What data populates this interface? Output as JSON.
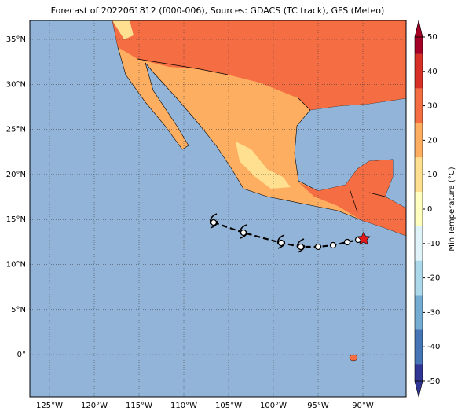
{
  "title": "Forecast of 2022061812 (f000-006), Sources: GDACS (TC track), GFS (Meteo)",
  "lat_labels": [
    "35°N",
    "30°N",
    "25°N",
    "20°N",
    "15°N",
    "10°N",
    "5°N",
    "0°"
  ],
  "lon_labels": [
    "125°W",
    "120°W",
    "115°W",
    "110°W",
    "105°W",
    "100°W",
    "95°W",
    "90°W"
  ],
  "colorbar": {
    "label": "Min Temperature (°C)",
    "ticks": [
      50,
      40,
      30,
      20,
      10,
      0,
      -10,
      -20,
      -30,
      -40,
      -50
    ],
    "colors": [
      "#a50026",
      "#d73027",
      "#f46d43",
      "#fdae61",
      "#fee090",
      "#ffffbf",
      "#e0f3f8",
      "#abd9e9",
      "#74add1",
      "#4575b4",
      "#313695"
    ]
  }
}
